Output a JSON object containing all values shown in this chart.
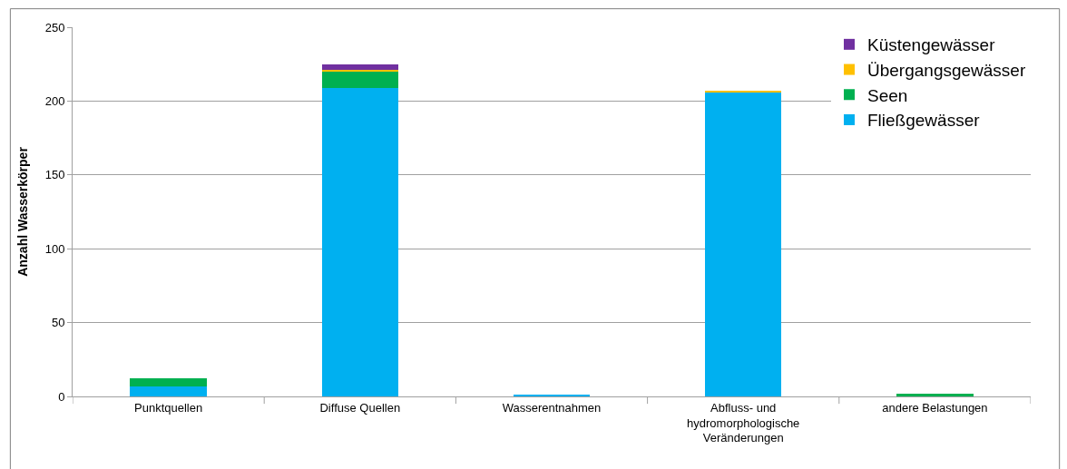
{
  "chart_data": {
    "type": "bar",
    "stacked": true,
    "ylabel": "Anzahl Wasserkörper",
    "categories": [
      "Punktquellen",
      "Diffuse Quellen",
      "Wasserentnahmen",
      "Abfluss- und\nhydromorphologische\nVeränderungen",
      "andere Belastungen"
    ],
    "series": [
      {
        "name": "Fließgewässer",
        "color": "#00b0f0",
        "values": [
          7,
          209,
          1,
          206,
          0
        ]
      },
      {
        "name": "Seen",
        "color": "#00b050",
        "values": [
          5,
          11,
          0,
          0,
          2
        ]
      },
      {
        "name": "Übergangsgewässer",
        "color": "#ffc000",
        "values": [
          0,
          1,
          0,
          1,
          0
        ]
      },
      {
        "name": "Küstengewässer",
        "color": "#7030a0",
        "values": [
          0,
          4,
          0,
          0,
          0
        ]
      }
    ],
    "ylim": [
      0,
      250
    ],
    "yticks": [
      0,
      50,
      100,
      150,
      200,
      250
    ],
    "grid": "y",
    "legend": "top right"
  }
}
